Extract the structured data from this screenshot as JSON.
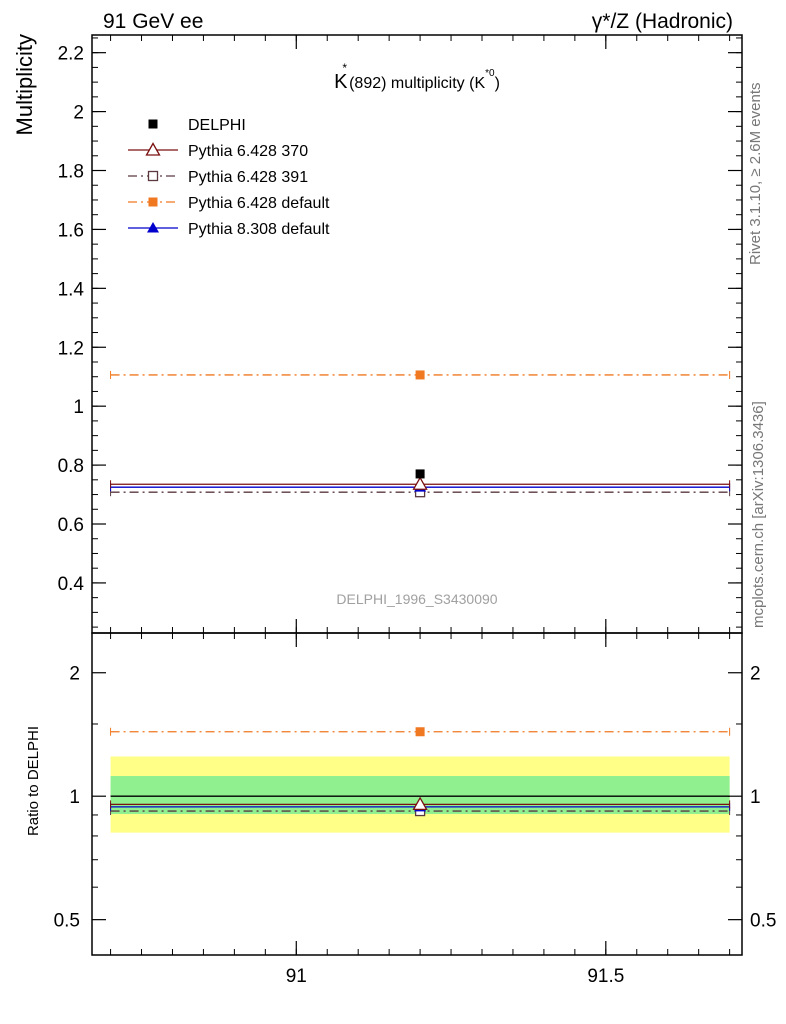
{
  "header": {
    "left": "91 GeV ee",
    "right": "γ*/Z (Hadronic)"
  },
  "side": {
    "rivet": "Rivet 3.1.10, ≥ 2.6M events",
    "mcplots": "mcplots.cern.ch [arXiv:1306.3436]"
  },
  "chart_data": [
    {
      "panel": "main",
      "type": "scatter",
      "title_main": "K",
      "title_star": "*",
      "title_mid": "(892) multiplicity (K",
      "title_sup": "*0",
      "title_end": ")",
      "ylabel": "Multiplicity",
      "watermark": "DELPHI_1996_S3430090",
      "xlim": [
        90.67,
        91.72
      ],
      "ylim": [
        0.23,
        2.26
      ],
      "y_ticks": [
        0.4,
        0.6,
        0.8,
        1,
        1.2,
        1.4,
        1.6,
        1.8,
        2,
        2.2
      ],
      "y_tick_labels": [
        "0.4",
        "0.6",
        "0.8",
        "1",
        "1.2",
        "1.4",
        "1.6",
        "1.8",
        "2",
        "2.2"
      ],
      "y_minor_step": 0.05,
      "bin": [
        90.7,
        91.7
      ],
      "x": 91.2,
      "series": [
        {
          "name": "DELPHI",
          "value": 0.77,
          "color": "#000000",
          "marker": "filled-square",
          "line": "none"
        },
        {
          "name": "Pythia 6.428 370",
          "value": 0.735,
          "color": "#7a1010",
          "marker": "open-triangle",
          "line": "solid"
        },
        {
          "name": "Pythia 6.428 391",
          "value": 0.708,
          "color": "#5a3a40",
          "marker": "open-square",
          "line": "dashdot"
        },
        {
          "name": "Pythia 6.428 default",
          "value": 1.106,
          "color": "#f07820",
          "marker": "filled-square",
          "line": "dashdot"
        },
        {
          "name": "Pythia 8.308 default",
          "value": 0.725,
          "color": "#0000cc",
          "marker": "filled-triangle",
          "line": "solid"
        }
      ]
    },
    {
      "panel": "ratio",
      "type": "scatter",
      "ylabel": "Ratio to DELPHI",
      "scale": "log",
      "xlim": [
        90.67,
        91.72
      ],
      "ylim": [
        0.41,
        2.5
      ],
      "x_ticks": [
        91,
        91.5
      ],
      "x_tick_labels": [
        "91",
        "91.5"
      ],
      "x_minor_step": 0.05,
      "y_ticks": [
        0.5,
        1,
        2
      ],
      "y_tick_labels": [
        "0.5",
        "1",
        "2"
      ],
      "y_minor": [
        0.6,
        0.7,
        0.8,
        0.9,
        1.5
      ],
      "bands": [
        {
          "lo": 0.815,
          "hi": 1.25,
          "color": "#ffff88"
        },
        {
          "lo": 0.905,
          "hi": 1.12,
          "color": "#90f090"
        }
      ],
      "series": [
        {
          "name": "DELPHI",
          "value": 1.0,
          "color": "#000000",
          "marker": "none",
          "line": "solid"
        },
        {
          "name": "Pythia 6.428 370",
          "value": 0.955,
          "color": "#7a1010",
          "marker": "open-triangle",
          "line": "solid"
        },
        {
          "name": "Pythia 6.428 391",
          "value": 0.92,
          "color": "#5a3a40",
          "marker": "open-square",
          "line": "dashdot"
        },
        {
          "name": "Pythia 6.428 default",
          "value": 1.436,
          "color": "#f07820",
          "marker": "filled-square",
          "line": "dashdot"
        },
        {
          "name": "Pythia 8.308 default",
          "value": 0.942,
          "color": "#0000cc",
          "marker": "filled-triangle",
          "line": "solid"
        }
      ]
    }
  ]
}
